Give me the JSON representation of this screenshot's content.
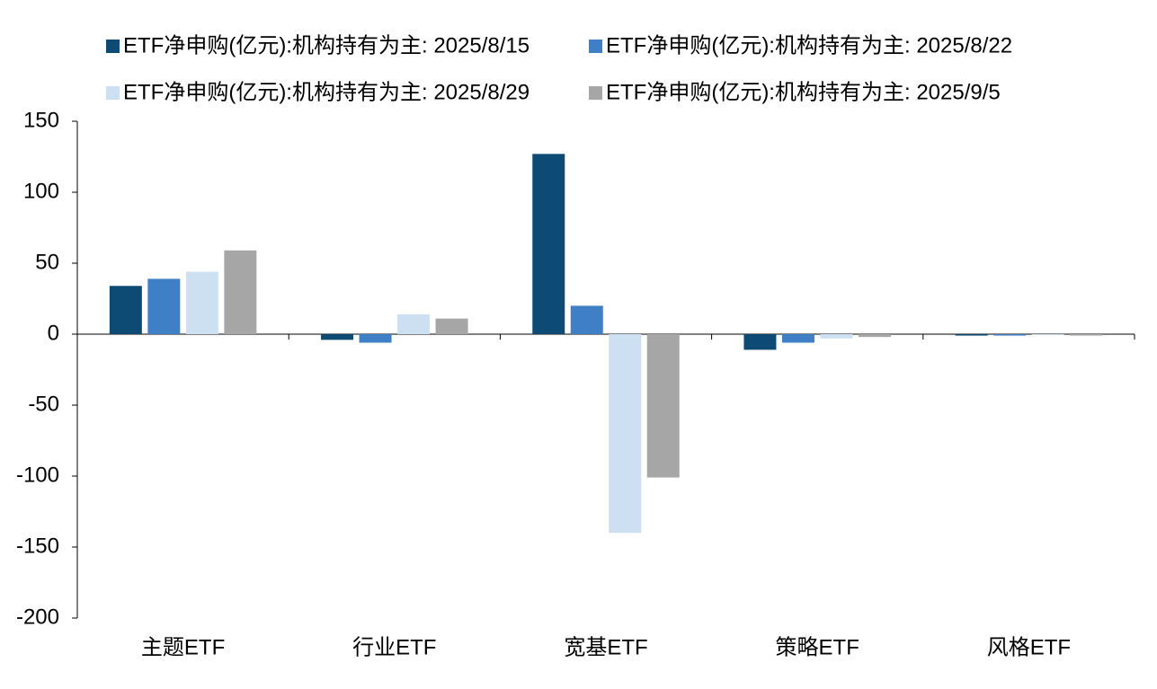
{
  "chart_data": {
    "type": "bar",
    "categories": [
      "主题ETF",
      "行业ETF",
      "宽基ETF",
      "策略ETF",
      "风格ETF"
    ],
    "series": [
      {
        "name": "ETF净申购(亿元):机构持有为主: 2025/8/15",
        "color": "#0d4a74",
        "values": [
          34,
          -4,
          127,
          -11,
          -1
        ]
      },
      {
        "name": "ETF净申购(亿元):机构持有为主: 2025/8/22",
        "color": "#3f7fc5",
        "values": [
          39,
          -6,
          20,
          -6,
          -1
        ]
      },
      {
        "name": "ETF净申购(亿元):机构持有为主: 2025/8/29",
        "color": "#cce0f2",
        "values": [
          44,
          14,
          -140,
          -3,
          -0.5
        ]
      },
      {
        "name": "ETF净申购(亿元):机构持有为主: 2025/9/5",
        "color": "#a6a6a6",
        "values": [
          59,
          11,
          -101,
          -2,
          -1
        ]
      }
    ],
    "ylim": [
      -200,
      150
    ],
    "yticks": [
      -200,
      -150,
      -100,
      -50,
      0,
      50,
      100,
      150
    ],
    "legend": "top"
  }
}
